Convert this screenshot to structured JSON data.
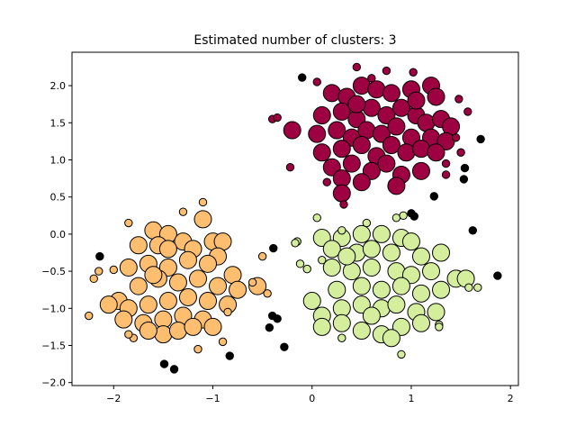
{
  "chart_data": {
    "type": "scatter",
    "title": "Estimated number of clusters: 3",
    "xlabel": "",
    "ylabel": "",
    "xlim": [
      -2.42,
      2.08
    ],
    "ylim": [
      -2.04,
      2.45
    ],
    "xticks": [
      -2,
      -1,
      0,
      1,
      2
    ],
    "yticks": [
      -2.0,
      -1.5,
      -1.0,
      -0.5,
      0.0,
      0.5,
      1.0,
      1.5,
      2.0
    ],
    "ytick_labels": [
      "−2.0",
      "−1.5",
      "−1.0",
      "−0.5",
      "0.0",
      "0.5",
      "1.0",
      "1.5",
      "2.0"
    ],
    "xtick_labels": [
      "−2",
      "−1",
      "0",
      "1",
      "2"
    ],
    "grid": false,
    "series": [
      {
        "color": "#9e0142",
        "core": [
          [
            0.2,
            1.9
          ],
          [
            0.35,
            1.85
          ],
          [
            0.5,
            2.0
          ],
          [
            0.65,
            1.95
          ],
          [
            0.8,
            1.9
          ],
          [
            1.0,
            1.95
          ],
          [
            1.2,
            2.0
          ],
          [
            1.25,
            1.85
          ],
          [
            0.1,
            1.6
          ],
          [
            0.3,
            1.65
          ],
          [
            0.45,
            1.55
          ],
          [
            0.6,
            1.7
          ],
          [
            0.75,
            1.6
          ],
          [
            0.9,
            1.7
          ],
          [
            1.05,
            1.6
          ],
          [
            1.15,
            1.5
          ],
          [
            1.3,
            1.55
          ],
          [
            1.4,
            1.45
          ],
          [
            -0.2,
            1.4
          ],
          [
            0.05,
            1.35
          ],
          [
            0.25,
            1.4
          ],
          [
            0.4,
            1.3
          ],
          [
            0.55,
            1.4
          ],
          [
            0.7,
            1.35
          ],
          [
            0.85,
            1.45
          ],
          [
            1.0,
            1.3
          ],
          [
            1.2,
            1.3
          ],
          [
            1.35,
            1.25
          ],
          [
            0.1,
            1.1
          ],
          [
            0.3,
            1.15
          ],
          [
            0.5,
            1.2
          ],
          [
            0.65,
            1.05
          ],
          [
            0.8,
            1.2
          ],
          [
            0.95,
            1.1
          ],
          [
            1.1,
            1.15
          ],
          [
            1.25,
            1.1
          ],
          [
            0.2,
            0.9
          ],
          [
            0.4,
            0.95
          ],
          [
            0.6,
            0.85
          ],
          [
            0.75,
            0.95
          ],
          [
            0.9,
            0.8
          ],
          [
            1.1,
            0.85
          ],
          [
            0.3,
            0.75
          ],
          [
            0.5,
            0.7
          ],
          [
            0.85,
            0.65
          ],
          [
            0.3,
            0.55
          ],
          [
            0.45,
            1.75
          ],
          [
            1.05,
            1.8
          ]
        ],
        "border": [
          [
            0.05,
            2.05
          ],
          [
            0.45,
            2.25
          ],
          [
            0.75,
            2.2
          ],
          [
            1.02,
            2.18
          ],
          [
            1.48,
            1.82
          ],
          [
            1.57,
            1.65
          ],
          [
            -0.4,
            1.55
          ],
          [
            -0.35,
            1.57
          ],
          [
            -0.22,
            0.9
          ],
          [
            1.45,
            1.3
          ],
          [
            1.35,
            0.95
          ],
          [
            1.35,
            0.8
          ],
          [
            0.32,
            0.4
          ],
          [
            0.15,
            0.7
          ],
          [
            0.6,
            2.1
          ],
          [
            1.5,
            1.1
          ]
        ]
      },
      {
        "color": "#fdbf6f",
        "core": [
          [
            -1.6,
            0.05
          ],
          [
            -1.45,
            0.0
          ],
          [
            -1.1,
            0.2
          ],
          [
            -1.3,
            -0.1
          ],
          [
            -1.0,
            -0.1
          ],
          [
            -0.9,
            -0.1
          ],
          [
            -1.75,
            -0.15
          ],
          [
            -1.55,
            -0.15
          ],
          [
            -1.2,
            -0.2
          ],
          [
            -0.95,
            -0.3
          ],
          [
            -1.85,
            -0.45
          ],
          [
            -1.65,
            -0.4
          ],
          [
            -1.45,
            -0.45
          ],
          [
            -1.25,
            -0.35
          ],
          [
            -1.05,
            -0.4
          ],
          [
            -0.8,
            -0.55
          ],
          [
            -1.95,
            -0.9
          ],
          [
            -1.75,
            -0.7
          ],
          [
            -1.55,
            -0.6
          ],
          [
            -1.35,
            -0.65
          ],
          [
            -1.15,
            -0.6
          ],
          [
            -0.95,
            -0.7
          ],
          [
            -0.75,
            -0.75
          ],
          [
            -0.55,
            -0.7
          ],
          [
            -2.05,
            -0.95
          ],
          [
            -1.85,
            -1.0
          ],
          [
            -1.65,
            -0.95
          ],
          [
            -1.45,
            -0.9
          ],
          [
            -1.25,
            -0.85
          ],
          [
            -1.05,
            -0.9
          ],
          [
            -0.85,
            -0.95
          ],
          [
            -1.9,
            -1.15
          ],
          [
            -1.7,
            -1.2
          ],
          [
            -1.5,
            -1.15
          ],
          [
            -1.3,
            -1.1
          ],
          [
            -1.1,
            -1.15
          ],
          [
            -1.0,
            -1.25
          ],
          [
            -1.5,
            -1.35
          ],
          [
            -1.65,
            -1.3
          ],
          [
            -1.35,
            -1.3
          ],
          [
            -1.2,
            -1.25
          ],
          [
            -1.45,
            -0.2
          ],
          [
            -1.6,
            -0.55
          ]
        ],
        "border": [
          [
            -2.25,
            -1.1
          ],
          [
            -2.2,
            -0.6
          ],
          [
            -2.15,
            -0.5
          ],
          [
            -2.0,
            -0.48
          ],
          [
            -1.85,
            0.15
          ],
          [
            -1.1,
            0.43
          ],
          [
            -1.3,
            0.3
          ],
          [
            -0.5,
            -0.3
          ],
          [
            -0.45,
            -0.8
          ],
          [
            -0.6,
            -0.65
          ],
          [
            -0.9,
            -1.45
          ],
          [
            -1.15,
            -1.55
          ],
          [
            -1.8,
            -1.4
          ],
          [
            -1.85,
            -1.35
          ],
          [
            -0.85,
            -1.05
          ]
        ]
      },
      {
        "color": "#d5ee9e",
        "core": [
          [
            0.1,
            -0.05
          ],
          [
            0.3,
            -0.05
          ],
          [
            0.5,
            0.0
          ],
          [
            0.7,
            0.0
          ],
          [
            0.9,
            -0.05
          ],
          [
            1.0,
            -0.1
          ],
          [
            0.2,
            -0.2
          ],
          [
            0.45,
            -0.25
          ],
          [
            0.6,
            -0.2
          ],
          [
            0.8,
            -0.25
          ],
          [
            1.1,
            -0.3
          ],
          [
            1.3,
            -0.25
          ],
          [
            0.2,
            -0.45
          ],
          [
            0.4,
            -0.5
          ],
          [
            0.6,
            -0.45
          ],
          [
            0.85,
            -0.5
          ],
          [
            1.0,
            -0.55
          ],
          [
            1.2,
            -0.5
          ],
          [
            1.45,
            -0.6
          ],
          [
            1.55,
            -0.6
          ],
          [
            0.0,
            -0.9
          ],
          [
            0.25,
            -0.75
          ],
          [
            0.5,
            -0.7
          ],
          [
            0.7,
            -0.75
          ],
          [
            0.9,
            -0.7
          ],
          [
            1.1,
            -0.8
          ],
          [
            1.3,
            -0.75
          ],
          [
            0.1,
            -1.1
          ],
          [
            0.3,
            -1.0
          ],
          [
            0.5,
            -0.95
          ],
          [
            0.7,
            -1.0
          ],
          [
            0.85,
            -0.95
          ],
          [
            1.05,
            -1.05
          ],
          [
            1.25,
            -1.05
          ],
          [
            0.1,
            -1.25
          ],
          [
            0.3,
            -1.2
          ],
          [
            0.5,
            -1.3
          ],
          [
            0.7,
            -1.35
          ],
          [
            0.9,
            -1.25
          ],
          [
            1.1,
            -1.2
          ],
          [
            0.6,
            -1.1
          ],
          [
            0.8,
            -1.4
          ],
          [
            0.35,
            -0.3
          ]
        ],
        "border": [
          [
            0.05,
            0.22
          ],
          [
            0.3,
            0.05
          ],
          [
            0.55,
            0.15
          ],
          [
            0.85,
            0.22
          ],
          [
            0.92,
            0.25
          ],
          [
            -0.15,
            -0.1
          ],
          [
            -0.17,
            -0.12
          ],
          [
            -0.12,
            -0.4
          ],
          [
            -0.05,
            -0.47
          ],
          [
            0.3,
            -1.4
          ],
          [
            0.9,
            -1.62
          ],
          [
            1.28,
            -1.22
          ],
          [
            1.28,
            -1.25
          ],
          [
            1.58,
            -0.72
          ],
          [
            1.67,
            -0.72
          ],
          [
            0.1,
            -0.35
          ]
        ]
      }
    ],
    "noise": {
      "color": "#000000",
      "points": [
        [
          -0.1,
          2.11
        ],
        [
          1.7,
          1.28
        ],
        [
          1.54,
          0.89
        ],
        [
          1.53,
          0.74
        ],
        [
          1.23,
          0.51
        ],
        [
          1.0,
          0.28
        ],
        [
          1.03,
          0.24
        ],
        [
          1.62,
          0.05
        ],
        [
          1.87,
          -0.56
        ],
        [
          -2.14,
          -0.3
        ],
        [
          -0.39,
          -0.19
        ],
        [
          -0.4,
          -1.1
        ],
        [
          -0.35,
          -1.14
        ],
        [
          -0.43,
          -1.26
        ],
        [
          -0.28,
          -1.52
        ],
        [
          -0.83,
          -1.64
        ],
        [
          -1.49,
          -1.75
        ],
        [
          -1.39,
          -1.82
        ]
      ]
    }
  }
}
